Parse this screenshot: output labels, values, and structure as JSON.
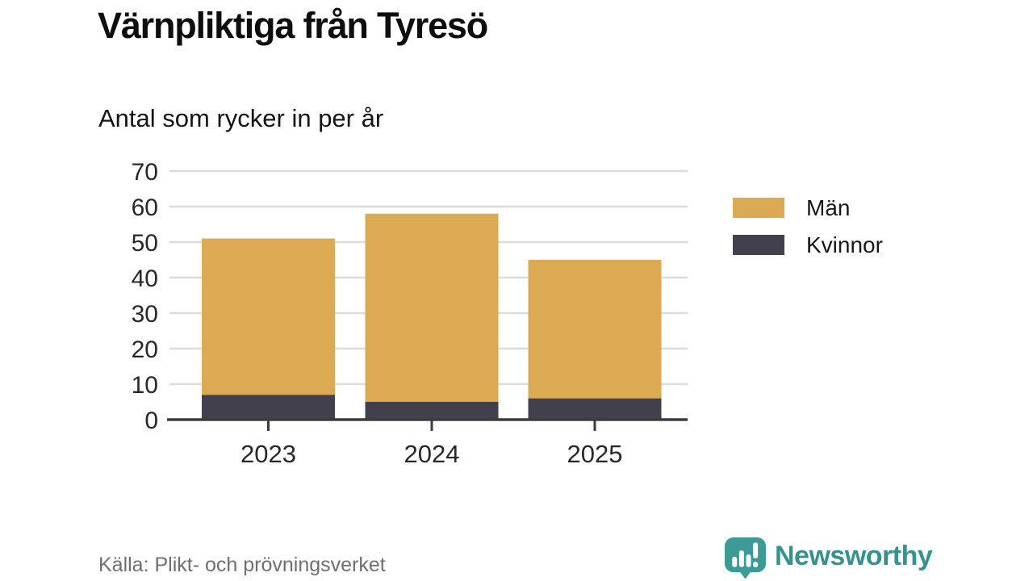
{
  "header": {
    "title": "Värnpliktiga från Tyresö",
    "subtitle": "Antal som rycker in per år"
  },
  "chart_data": {
    "type": "bar",
    "stacked": true,
    "categories": [
      "2023",
      "2024",
      "2025"
    ],
    "series": [
      {
        "name": "Män",
        "color": "#DBAA53",
        "values": [
          44,
          53,
          39
        ]
      },
      {
        "name": "Kvinnor",
        "color": "#42404D",
        "values": [
          7,
          5,
          6
        ]
      }
    ],
    "stack_totals": [
      51,
      58,
      45
    ],
    "bottom_series": "Kvinnor",
    "title": "Värnpliktiga från Tyresö",
    "subtitle": "Antal som rycker in per år",
    "xlabel": "",
    "ylabel": "",
    "ylim": [
      0,
      70
    ],
    "yticks": [
      0,
      10,
      20,
      30,
      40,
      50,
      60,
      70
    ],
    "grid": true,
    "legend_position": "right"
  },
  "footer": {
    "source": "Källa: Plikt- och prövningsverket",
    "brand_name": "Newsworthy"
  },
  "colors": {
    "background": "#FFFFFF",
    "bar_men": "#DBAA53",
    "bar_women": "#42404D",
    "gridline": "#DCDCDC",
    "axis": "#3B3B40",
    "tick_label": "#28282c",
    "source_text": "#6E6E78",
    "brand_teal": "#35928D",
    "brand_icon_teal": "#3C9B96"
  }
}
